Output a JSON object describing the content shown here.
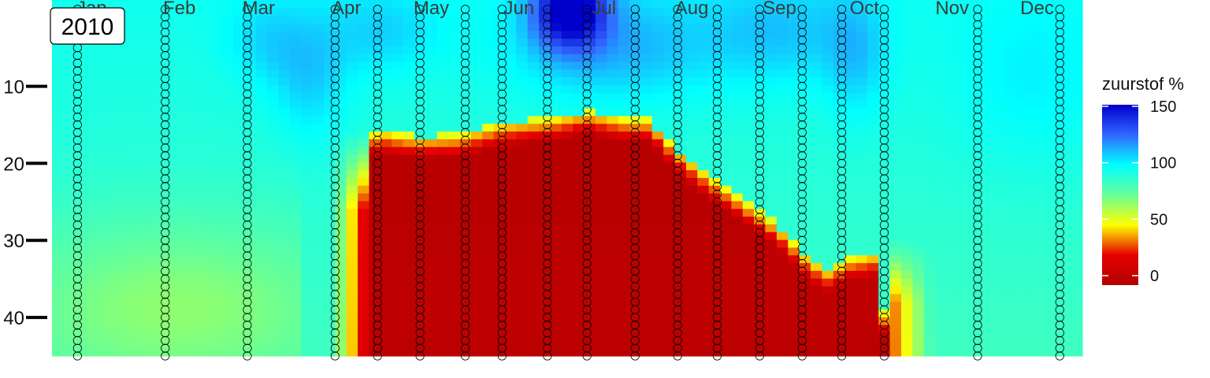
{
  "chart_data": {
    "type": "heatmap",
    "title": "2010",
    "xlabel": "",
    "ylabel": "",
    "x_tick_labels": [
      "Jan",
      "Feb",
      "Mar",
      "Apr",
      "May",
      "Jun",
      "Jul",
      "Aug",
      "Sep",
      "Oct",
      "Nov",
      "Dec"
    ],
    "y_ticks": [
      10,
      20,
      30,
      40
    ],
    "y_tick_labels": [
      "10",
      "20",
      "30",
      "40"
    ],
    "y_range": [
      1,
      45
    ],
    "y_reversed": true,
    "x_range_days": [
      1,
      365
    ],
    "z_name": "zuurstof %",
    "z_range": [
      0,
      150
    ],
    "legend": {
      "title": "zuurstof %",
      "ticks": [
        0,
        50,
        100,
        150
      ],
      "tick_labels": [
        "0",
        "50",
        "100",
        "150"
      ],
      "position": "right"
    },
    "colorscale": [
      {
        "value": 0,
        "color": "#b40000"
      },
      {
        "value": 25,
        "color": "#e60000"
      },
      {
        "value": 50,
        "color": "#ffff00"
      },
      {
        "value": 75,
        "color": "#66ff99"
      },
      {
        "value": 100,
        "color": "#00ffff"
      },
      {
        "value": 125,
        "color": "#3366ff"
      },
      {
        "value": 150,
        "color": "#0000cc"
      }
    ],
    "sampling_days": [
      10,
      41,
      70,
      101,
      116,
      131,
      147,
      160,
      176,
      190,
      207,
      222,
      236,
      251,
      266,
      280,
      295,
      328,
      357
    ],
    "sampling_depth_max": [
      45,
      45,
      45,
      45,
      45,
      45,
      45,
      45,
      45,
      45,
      45,
      45,
      45,
      45,
      45,
      45,
      45,
      45,
      45
    ],
    "anoxic_layer": {
      "description_value": 0,
      "days": [
        113,
        118,
        130,
        145,
        160,
        175,
        190,
        205,
        212,
        222,
        232,
        245,
        258,
        268,
        275,
        283,
        291,
        297
      ],
      "top_depth_m": [
        18,
        17.5,
        18.3,
        18,
        16.5,
        16,
        15,
        16,
        16,
        20,
        23,
        26.5,
        30,
        34,
        35.5,
        34,
        33.5,
        45
      ]
    }
  },
  "year_label": "2010"
}
